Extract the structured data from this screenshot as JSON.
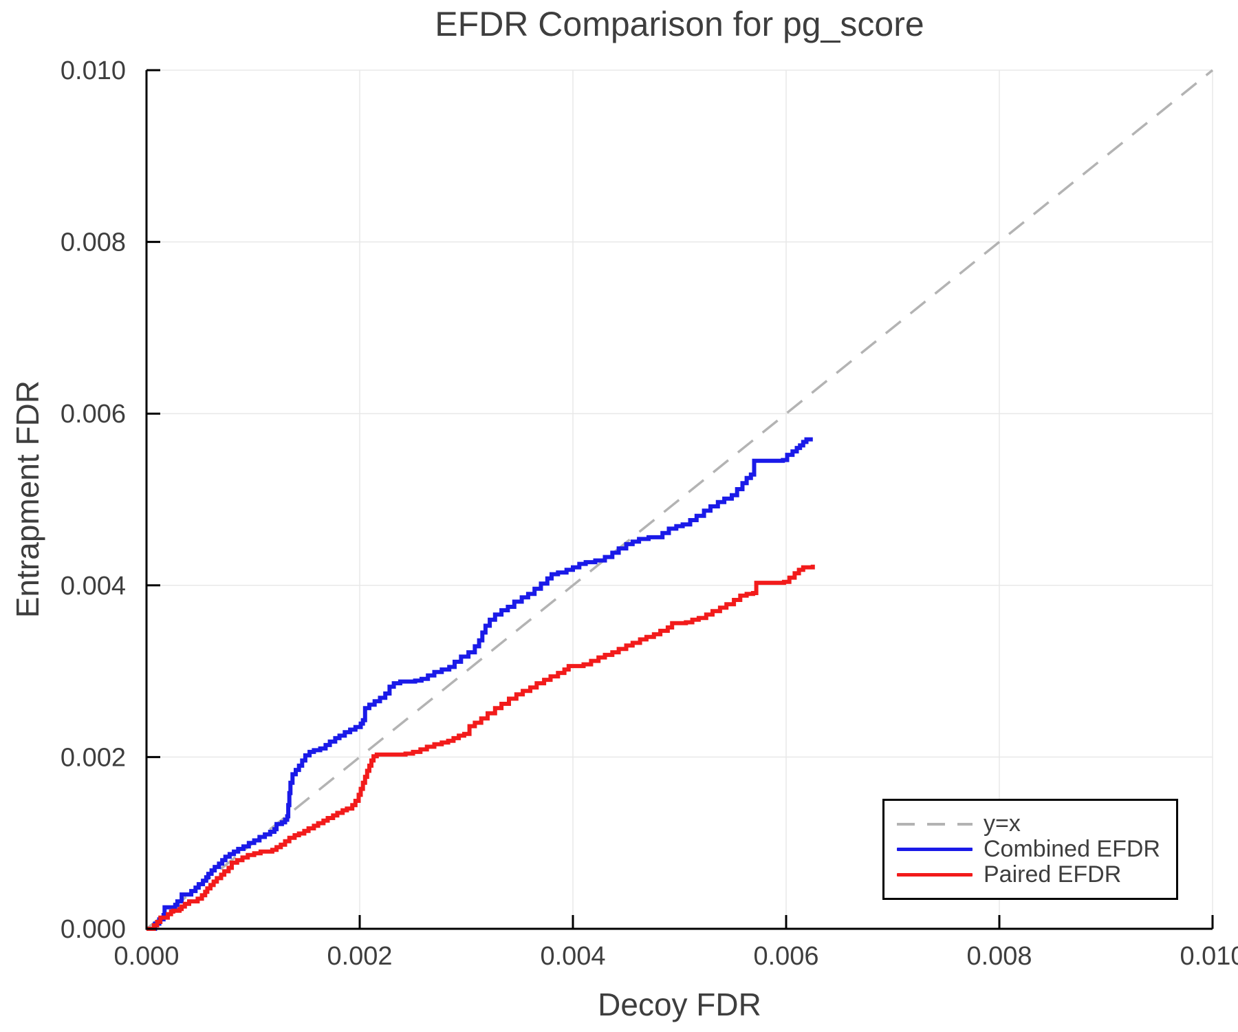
{
  "title": "EFDR Comparison for pg_score",
  "axes": {
    "xlabel": "Decoy FDR",
    "ylabel": "Entrapment FDR",
    "x_tick_labels": [
      "0.000",
      "0.002",
      "0.004",
      "0.006",
      "0.008",
      "0.010"
    ],
    "y_tick_labels": [
      "0.000",
      "0.002",
      "0.004",
      "0.006",
      "0.008",
      "0.010"
    ]
  },
  "legend": {
    "items": [
      {
        "label": "y=x",
        "color": "#b3b3b3",
        "style": "dashed"
      },
      {
        "label": "Combined EFDR",
        "color": "#1a1ae8",
        "style": "solid"
      },
      {
        "label": "Paired EFDR",
        "color": "#f21b1b",
        "style": "solid"
      }
    ]
  },
  "colors": {
    "combined": "#1a1ae8",
    "paired": "#f21b1b",
    "identity": "#b3b3b3",
    "grid": "#e8e8e8",
    "text": "#3e3e3e",
    "spine": "#000000"
  },
  "chart_data": {
    "type": "line",
    "title": "EFDR Comparison for pg_score",
    "xlabel": "Decoy FDR",
    "ylabel": "Entrapment FDR",
    "xlim": [
      0.0,
      0.01
    ],
    "ylim": [
      0.0,
      0.01
    ],
    "grid": true,
    "legend_position": "lower right",
    "identity_line": {
      "name": "y=x",
      "from": [
        0.0,
        0.0
      ],
      "to": [
        0.01,
        0.01
      ],
      "dashed": true
    },
    "series": [
      {
        "name": "Combined EFDR",
        "color": "#1a1ae8",
        "step": true,
        "points": [
          [
            0.0,
            0.0
          ],
          [
            8e-05,
            6e-05
          ],
          [
            0.00012,
            0.00011
          ],
          [
            0.00016,
            0.00016
          ],
          [
            0.00017,
            0.00025
          ],
          [
            0.00027,
            0.00028
          ],
          [
            0.00029,
            0.00032
          ],
          [
            0.00033,
            0.0004
          ],
          [
            0.00042,
            0.00044
          ],
          [
            0.00046,
            0.00048
          ],
          [
            0.00049,
            0.00052
          ],
          [
            0.00053,
            0.00056
          ],
          [
            0.00056,
            0.0006
          ],
          [
            0.00058,
            0.00064
          ],
          [
            0.00061,
            0.00068
          ],
          [
            0.00064,
            0.00072
          ],
          [
            0.00068,
            0.00076
          ],
          [
            0.00071,
            0.0008
          ],
          [
            0.00074,
            0.00084
          ],
          [
            0.00078,
            0.00087
          ],
          [
            0.00082,
            0.0009
          ],
          [
            0.00086,
            0.00093
          ],
          [
            0.00091,
            0.00096
          ],
          [
            0.00096,
            0.001
          ],
          [
            0.00101,
            0.00103
          ],
          [
            0.00106,
            0.00107
          ],
          [
            0.00111,
            0.0011
          ],
          [
            0.00116,
            0.00113
          ],
          [
            0.0012,
            0.00116
          ],
          [
            0.00122,
            0.00122
          ],
          [
            0.00127,
            0.00124
          ],
          [
            0.0013,
            0.00127
          ],
          [
            0.00132,
            0.00131
          ],
          [
            0.00133,
            0.00144
          ],
          [
            0.00134,
            0.00158
          ],
          [
            0.00135,
            0.0017
          ],
          [
            0.00137,
            0.0018
          ],
          [
            0.0014,
            0.00185
          ],
          [
            0.00143,
            0.0019
          ],
          [
            0.00146,
            0.00196
          ],
          [
            0.00149,
            0.00202
          ],
          [
            0.00153,
            0.00206
          ],
          [
            0.00157,
            0.00208
          ],
          [
            0.00163,
            0.0021
          ],
          [
            0.00168,
            0.00214
          ],
          [
            0.00172,
            0.00218
          ],
          [
            0.00177,
            0.00222
          ],
          [
            0.00181,
            0.00225
          ],
          [
            0.00186,
            0.00229
          ],
          [
            0.00191,
            0.00232
          ],
          [
            0.00196,
            0.00235
          ],
          [
            0.00201,
            0.00239
          ],
          [
            0.00203,
            0.00243
          ],
          [
            0.00205,
            0.00257
          ],
          [
            0.00209,
            0.00261
          ],
          [
            0.00214,
            0.00265
          ],
          [
            0.00219,
            0.00269
          ],
          [
            0.00224,
            0.00274
          ],
          [
            0.00228,
            0.00282
          ],
          [
            0.00232,
            0.00286
          ],
          [
            0.00238,
            0.00288
          ],
          [
            0.00252,
            0.00289
          ],
          [
            0.00258,
            0.00291
          ],
          [
            0.00264,
            0.00295
          ],
          [
            0.0027,
            0.00299
          ],
          [
            0.00277,
            0.00302
          ],
          [
            0.00284,
            0.00305
          ],
          [
            0.00289,
            0.00311
          ],
          [
            0.00295,
            0.00317
          ],
          [
            0.00302,
            0.00322
          ],
          [
            0.00308,
            0.00329
          ],
          [
            0.00312,
            0.00336
          ],
          [
            0.00315,
            0.00345
          ],
          [
            0.00318,
            0.00353
          ],
          [
            0.00322,
            0.0036
          ],
          [
            0.00327,
            0.00366
          ],
          [
            0.00333,
            0.00371
          ],
          [
            0.00339,
            0.00375
          ],
          [
            0.00345,
            0.00381
          ],
          [
            0.00352,
            0.00386
          ],
          [
            0.00358,
            0.0039
          ],
          [
            0.00364,
            0.00396
          ],
          [
            0.0037,
            0.00402
          ],
          [
            0.00376,
            0.00408
          ],
          [
            0.0038,
            0.00413
          ],
          [
            0.00386,
            0.00415
          ],
          [
            0.00394,
            0.00418
          ],
          [
            0.004,
            0.00421
          ],
          [
            0.00406,
            0.00425
          ],
          [
            0.00412,
            0.00427
          ],
          [
            0.00421,
            0.00429
          ],
          [
            0.0043,
            0.00433
          ],
          [
            0.00437,
            0.00438
          ],
          [
            0.00443,
            0.00443
          ],
          [
            0.0045,
            0.00448
          ],
          [
            0.00456,
            0.00451
          ],
          [
            0.00462,
            0.00454
          ],
          [
            0.00471,
            0.00456
          ],
          [
            0.00484,
            0.00461
          ],
          [
            0.0049,
            0.00466
          ],
          [
            0.00497,
            0.00469
          ],
          [
            0.00503,
            0.00471
          ],
          [
            0.0051,
            0.00476
          ],
          [
            0.00516,
            0.00481
          ],
          [
            0.00523,
            0.00487
          ],
          [
            0.00529,
            0.00492
          ],
          [
            0.00536,
            0.00497
          ],
          [
            0.00542,
            0.00501
          ],
          [
            0.00549,
            0.00505
          ],
          [
            0.00554,
            0.00512
          ],
          [
            0.00559,
            0.00519
          ],
          [
            0.00563,
            0.00525
          ],
          [
            0.00567,
            0.00529
          ],
          [
            0.0057,
            0.00545
          ],
          [
            0.00597,
            0.00546
          ],
          [
            0.00601,
            0.00552
          ],
          [
            0.00606,
            0.00556
          ],
          [
            0.0061,
            0.0056
          ],
          [
            0.00613,
            0.00563
          ],
          [
            0.00616,
            0.00567
          ],
          [
            0.00619,
            0.0057
          ],
          [
            0.00625,
            0.0057
          ]
        ]
      },
      {
        "name": "Paired EFDR",
        "color": "#f21b1b",
        "step": true,
        "points": [
          [
            0.0,
            0.0
          ],
          [
            7e-05,
            4e-05
          ],
          [
            0.0001,
            8e-05
          ],
          [
            0.00013,
            0.00013
          ],
          [
            0.00019,
            0.00013
          ],
          [
            0.0002,
            0.00017
          ],
          [
            0.00023,
            0.0002
          ],
          [
            0.00025,
            0.00021
          ],
          [
            0.00031,
            0.00023
          ],
          [
            0.00033,
            0.00026
          ],
          [
            0.00036,
            0.00029
          ],
          [
            0.0004,
            0.00032
          ],
          [
            0.00048,
            0.00035
          ],
          [
            0.00052,
            0.00039
          ],
          [
            0.00055,
            0.00043
          ],
          [
            0.00057,
            0.00047
          ],
          [
            0.0006,
            0.00051
          ],
          [
            0.00063,
            0.00055
          ],
          [
            0.00066,
            0.00059
          ],
          [
            0.0007,
            0.00063
          ],
          [
            0.00073,
            0.00067
          ],
          [
            0.00077,
            0.00071
          ],
          [
            0.0008,
            0.00077
          ],
          [
            0.00085,
            0.0008
          ],
          [
            0.0009,
            0.00083
          ],
          [
            0.00095,
            0.00086
          ],
          [
            0.00101,
            0.00088
          ],
          [
            0.00107,
            0.0009
          ],
          [
            0.00118,
            0.00092
          ],
          [
            0.00122,
            0.00095
          ],
          [
            0.00126,
            0.00098
          ],
          [
            0.0013,
            0.00102
          ],
          [
            0.00134,
            0.00106
          ],
          [
            0.00139,
            0.00109
          ],
          [
            0.00143,
            0.00111
          ],
          [
            0.00148,
            0.00114
          ],
          [
            0.00152,
            0.00117
          ],
          [
            0.00157,
            0.0012
          ],
          [
            0.00161,
            0.00123
          ],
          [
            0.00166,
            0.00126
          ],
          [
            0.0017,
            0.00129
          ],
          [
            0.00175,
            0.00132
          ],
          [
            0.00179,
            0.00135
          ],
          [
            0.00184,
            0.00138
          ],
          [
            0.00188,
            0.0014
          ],
          [
            0.00193,
            0.00144
          ],
          [
            0.00196,
            0.00149
          ],
          [
            0.00199,
            0.00156
          ],
          [
            0.00201,
            0.00163
          ],
          [
            0.00203,
            0.0017
          ],
          [
            0.00205,
            0.00177
          ],
          [
            0.00207,
            0.00184
          ],
          [
            0.00209,
            0.0019
          ],
          [
            0.00211,
            0.00196
          ],
          [
            0.00213,
            0.00201
          ],
          [
            0.00216,
            0.00203
          ],
          [
            0.00243,
            0.00204
          ],
          [
            0.0025,
            0.00206
          ],
          [
            0.00257,
            0.00209
          ],
          [
            0.00263,
            0.00212
          ],
          [
            0.0027,
            0.00215
          ],
          [
            0.00277,
            0.00217
          ],
          [
            0.00283,
            0.00219
          ],
          [
            0.00288,
            0.00222
          ],
          [
            0.00293,
            0.00225
          ],
          [
            0.00298,
            0.00227
          ],
          [
            0.00303,
            0.00236
          ],
          [
            0.00308,
            0.0024
          ],
          [
            0.00314,
            0.00245
          ],
          [
            0.0032,
            0.00251
          ],
          [
            0.00327,
            0.00257
          ],
          [
            0.00333,
            0.00262
          ],
          [
            0.0034,
            0.00268
          ],
          [
            0.00347,
            0.00273
          ],
          [
            0.00353,
            0.00277
          ],
          [
            0.0036,
            0.00281
          ],
          [
            0.00366,
            0.00286
          ],
          [
            0.00373,
            0.0029
          ],
          [
            0.00379,
            0.00294
          ],
          [
            0.00386,
            0.00298
          ],
          [
            0.00392,
            0.00302
          ],
          [
            0.00396,
            0.00306
          ],
          [
            0.0041,
            0.00308
          ],
          [
            0.00417,
            0.00312
          ],
          [
            0.00424,
            0.00316
          ],
          [
            0.0043,
            0.00319
          ],
          [
            0.00437,
            0.00322
          ],
          [
            0.00443,
            0.00326
          ],
          [
            0.0045,
            0.0033
          ],
          [
            0.00456,
            0.00333
          ],
          [
            0.00463,
            0.00337
          ],
          [
            0.00469,
            0.0034
          ],
          [
            0.00476,
            0.00343
          ],
          [
            0.00482,
            0.00347
          ],
          [
            0.00489,
            0.00351
          ],
          [
            0.00493,
            0.00356
          ],
          [
            0.00506,
            0.00357
          ],
          [
            0.00512,
            0.0036
          ],
          [
            0.00518,
            0.00362
          ],
          [
            0.00525,
            0.00366
          ],
          [
            0.00531,
            0.0037
          ],
          [
            0.00538,
            0.00374
          ],
          [
            0.00544,
            0.00378
          ],
          [
            0.00551,
            0.00383
          ],
          [
            0.00557,
            0.00388
          ],
          [
            0.00563,
            0.0039
          ],
          [
            0.00569,
            0.00391
          ],
          [
            0.00572,
            0.00403
          ],
          [
            0.00598,
            0.00404
          ],
          [
            0.00603,
            0.00409
          ],
          [
            0.00608,
            0.00414
          ],
          [
            0.00612,
            0.00418
          ],
          [
            0.00616,
            0.00421
          ],
          [
            0.00625,
            0.00424
          ]
        ]
      }
    ]
  }
}
